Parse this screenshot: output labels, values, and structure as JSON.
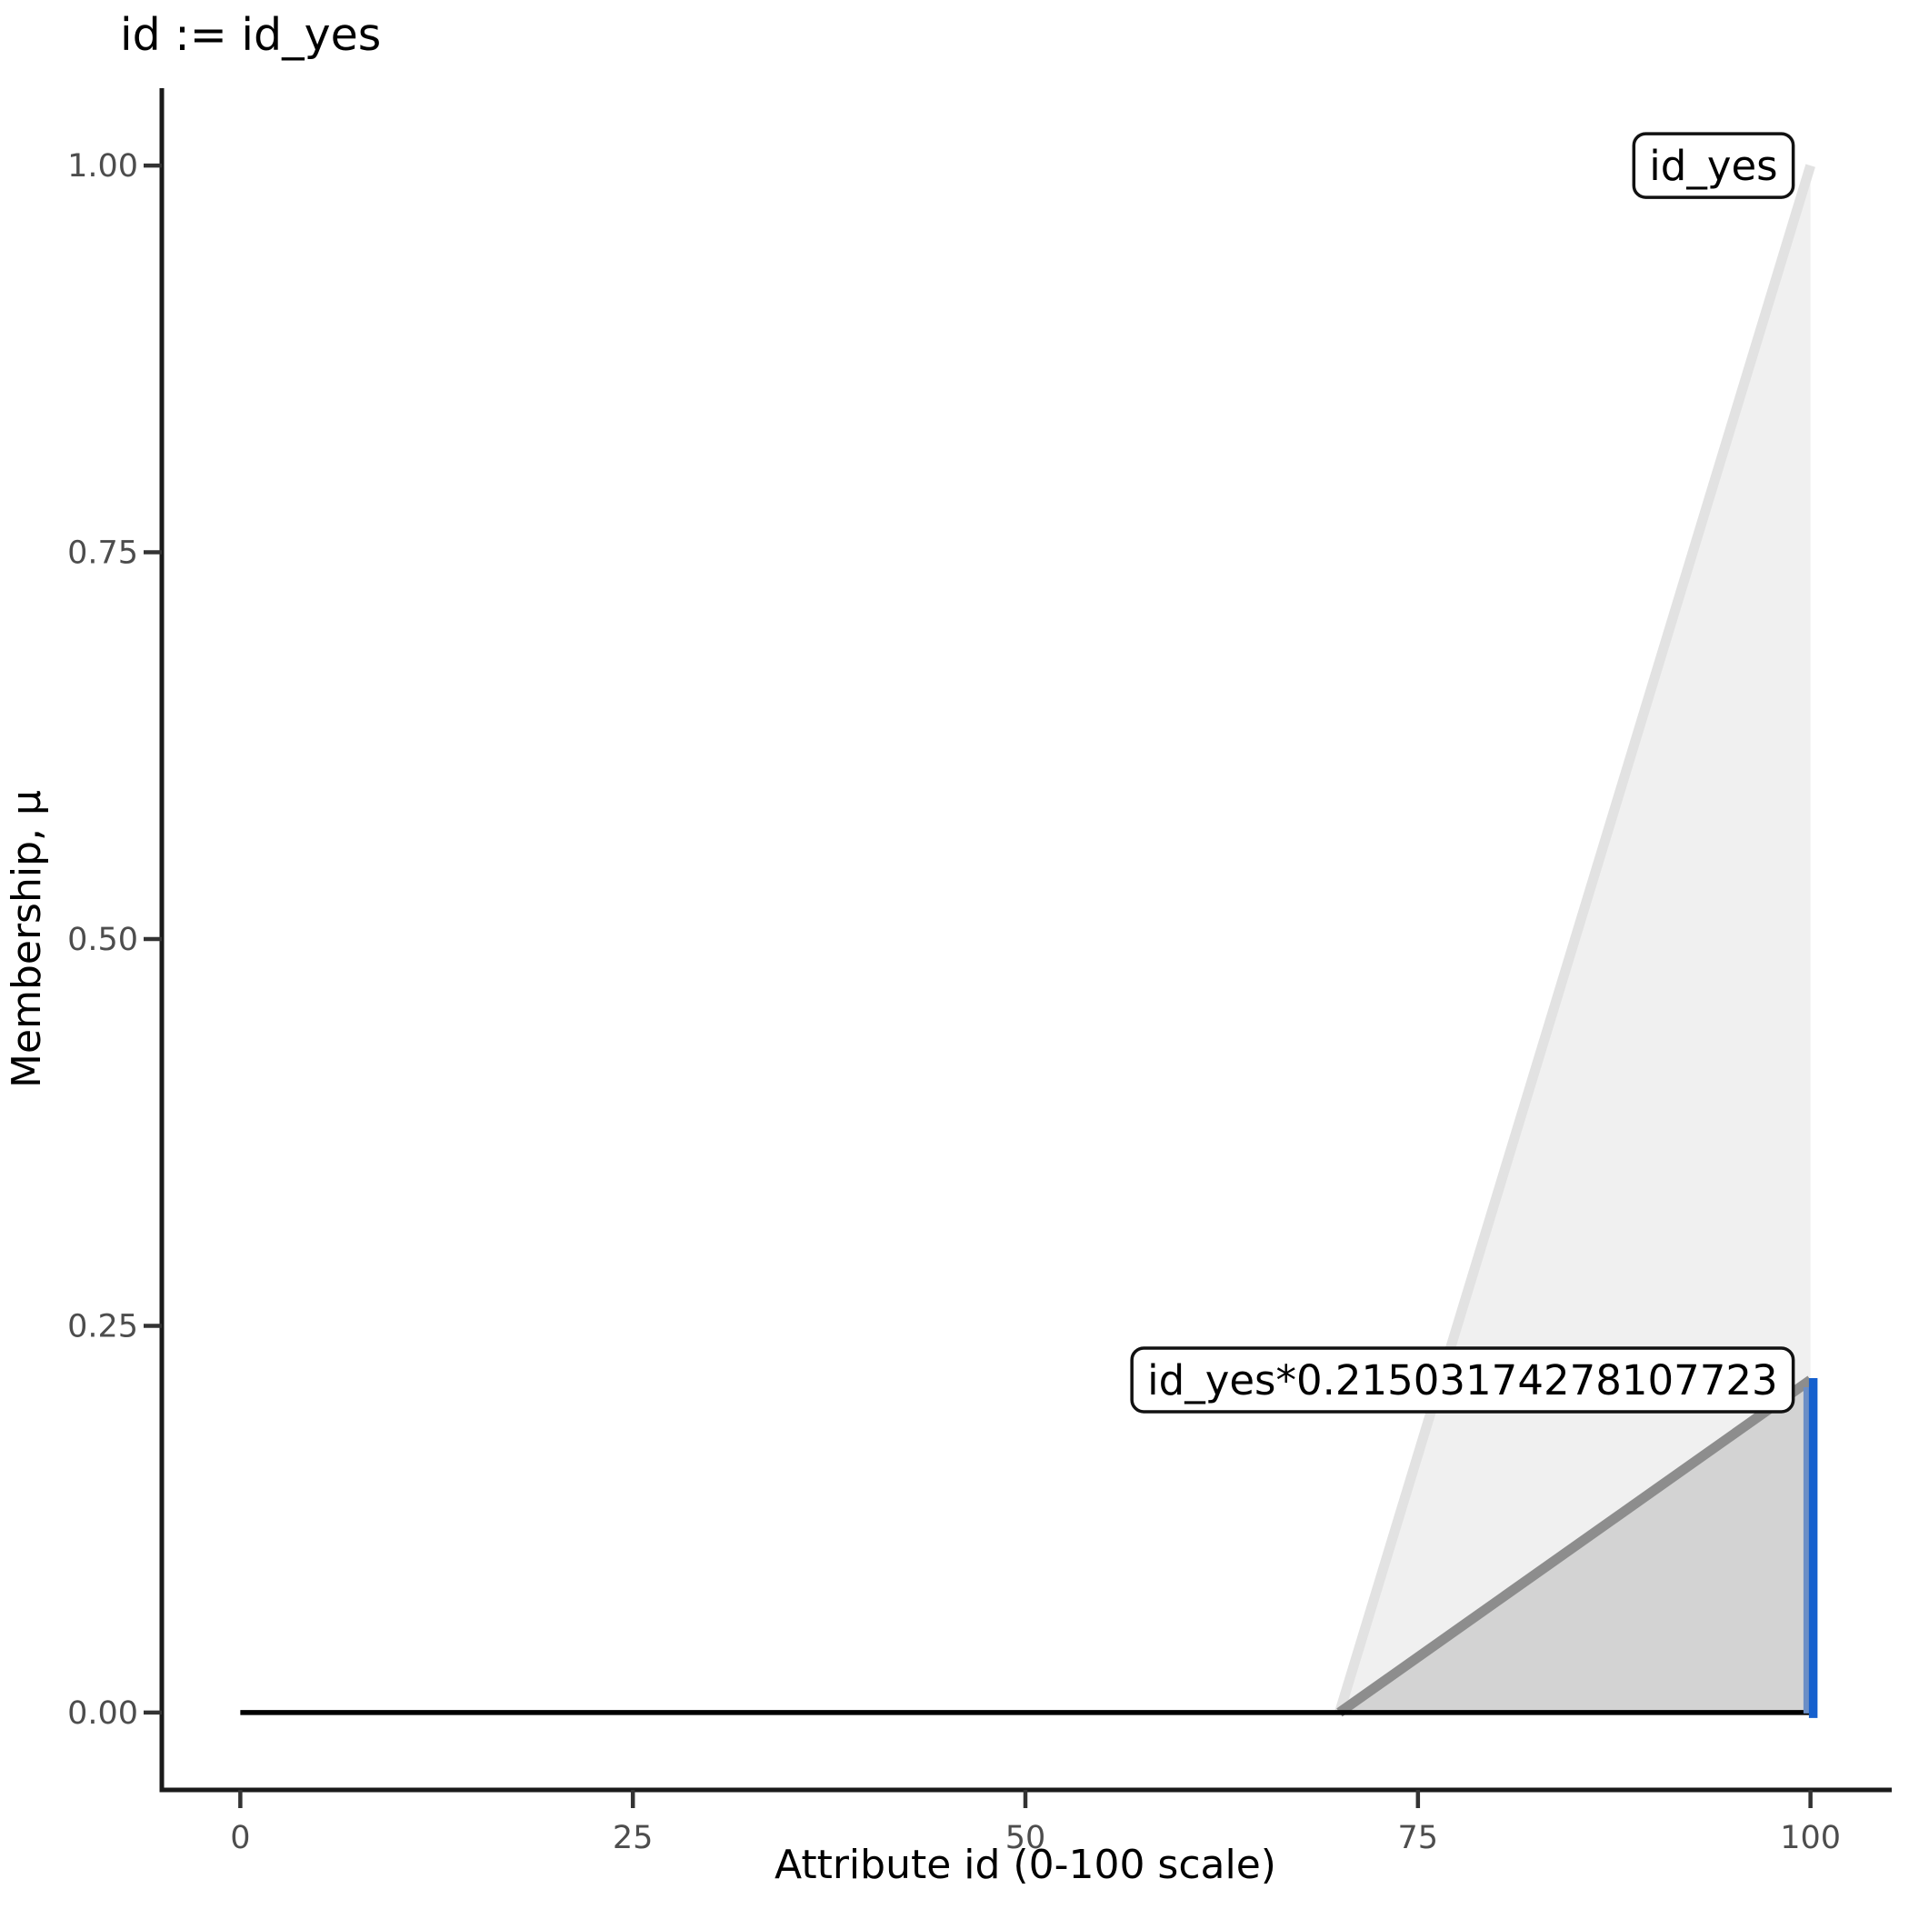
{
  "chart_data": {
    "type": "area",
    "title": "id := id_yes",
    "xlabel": "Attribute id (0-100 scale)",
    "ylabel": "Membership, μ",
    "xlim": [
      0,
      100
    ],
    "ylim": [
      0,
      1
    ],
    "grid": false,
    "legend_position": "none",
    "x_ticks": {
      "values": [
        0,
        25,
        50,
        75,
        100
      ],
      "labels": [
        "0",
        "25",
        "50",
        "75",
        "100"
      ]
    },
    "y_ticks": {
      "values": [
        0,
        0.25,
        0.5,
        0.75,
        1.0
      ],
      "labels": [
        "0.00",
        "0.25",
        "0.50",
        "0.75",
        "1.00"
      ]
    },
    "series": [
      {
        "name": "id_yes",
        "role": "full-membership",
        "points": [
          [
            0,
            0
          ],
          [
            70,
            0
          ],
          [
            100,
            1
          ],
          [
            100,
            0
          ]
        ],
        "fill": "#F0F0F0",
        "stroke": "#E2E2E2"
      },
      {
        "name": "id_yes*0.21503174278107723",
        "role": "scaled-membership",
        "points": [
          [
            0,
            0
          ],
          [
            70,
            0
          ],
          [
            100,
            0.21503174278107723
          ],
          [
            100,
            0
          ]
        ],
        "fill": "#D3D3D3",
        "stroke": "#8D8D8D"
      }
    ],
    "baseline": {
      "x0": 0,
      "x1": 100,
      "y": 0,
      "color": "#000000"
    },
    "activation_marker": {
      "x": 100,
      "y0": 0,
      "y1": 0.21503174278107723,
      "color": "#1560CE",
      "halo_color": "#6B8EC6"
    },
    "annotations": [
      {
        "text": "id_yes",
        "x": 100,
        "y": 1.0
      },
      {
        "text": "id_yes*0.21503174278107723",
        "x": 100,
        "y": 0.21503174278107723
      }
    ],
    "colors": {
      "spine": "#1A1A1A",
      "tick": "#333333",
      "tick_label": "#4D4D4D",
      "axis_title": "#000000",
      "label_box_fill": "#FFFFFF",
      "label_box_border": "#111111",
      "label_text": "#000000"
    }
  }
}
